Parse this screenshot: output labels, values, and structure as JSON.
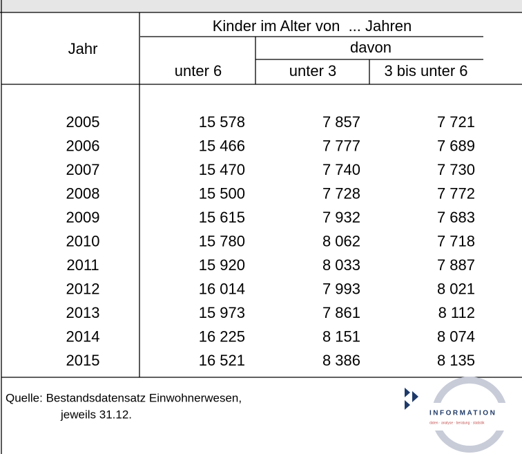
{
  "table": {
    "header": {
      "group": "Kinder im Alter von  ... Jahren",
      "year": "Jahr",
      "sub": "davon",
      "columns": [
        "unter 6",
        "unter 3",
        "3 bis unter 6"
      ]
    },
    "rows": [
      [
        "2005",
        "15 578",
        "7 857",
        "7 721"
      ],
      [
        "2006",
        "15 466",
        "7 777",
        "7 689"
      ],
      [
        "2007",
        "15 470",
        "7 740",
        "7 730"
      ],
      [
        "2008",
        "15 500",
        "7 728",
        "7 772"
      ],
      [
        "2009",
        "15 615",
        "7 932",
        "7 683"
      ],
      [
        "2010",
        "15 780",
        "8 062",
        "7 718"
      ],
      [
        "2011",
        "15 920",
        "8 033",
        "7 887"
      ],
      [
        "2012",
        "16 014",
        "7 993",
        "8 021"
      ],
      [
        "2013",
        "15 973",
        "7 861",
        "8 112"
      ],
      [
        "2014",
        "16 225",
        "8 151",
        "8 074"
      ],
      [
        "2015",
        "16 521",
        "8 386",
        "8 135"
      ]
    ]
  },
  "footer": {
    "source": [
      "Quelle: Bestandsdatensatz Einwohnerwesen,",
      "jeweils 31.12."
    ]
  },
  "logo": {
    "text": "INFORMATION",
    "tagline": "daten · analyse · beratung · statistik"
  }
}
